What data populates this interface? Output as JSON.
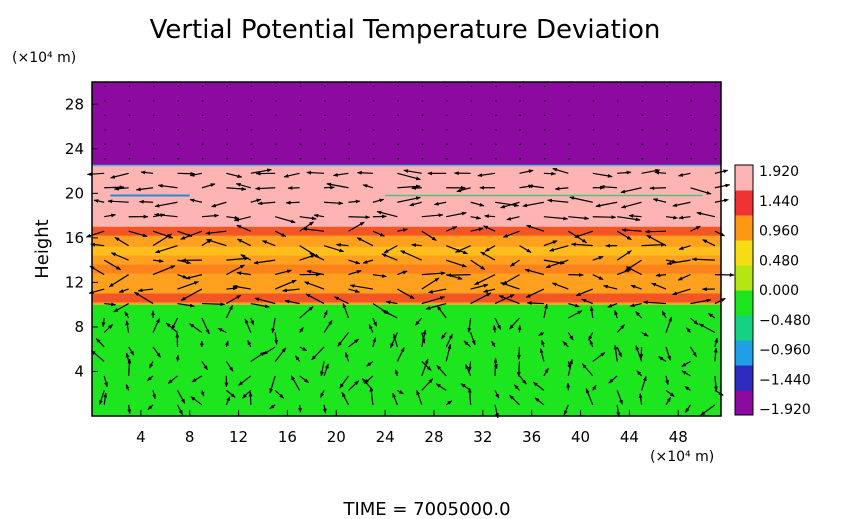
{
  "chart_data": {
    "type": "heatmap",
    "title": "Vertial Potential Temperature Deviation",
    "ylabel": "Height",
    "y_unit_label": "(×10⁴ m)",
    "x_unit_label": "(×10⁴ m)",
    "footer": "TIME  =  7005000.0",
    "xlim": [
      0,
      51.5
    ],
    "ylim": [
      0,
      30
    ],
    "xticks": [
      4,
      8,
      12,
      16,
      20,
      24,
      28,
      32,
      36,
      40,
      44,
      48
    ],
    "yticks": [
      4,
      8,
      12,
      16,
      20,
      24,
      28
    ],
    "colorbar": {
      "ticks": [
        "1.920",
        "1.440",
        "0.960",
        "0.480",
        "0.000",
        "−0.480",
        "−0.960",
        "−1.440",
        "−1.920"
      ],
      "range": [
        -1.92,
        1.92
      ],
      "colors": [
        "#8c0aa0",
        "#2b2bbf",
        "#1ea0e6",
        "#14d282",
        "#1ee61e",
        "#b4e614",
        "#f5dc14",
        "#ff9614",
        "#f03232",
        "#ffb4b4"
      ]
    },
    "layers": [
      {
        "name": "lower",
        "y_range": [
          0,
          10
        ],
        "value": 0.0,
        "color": "#1ee61e"
      },
      {
        "name": "middle",
        "y_range": [
          10,
          17
        ],
        "value": 1.2,
        "color": "#ffa01e"
      },
      {
        "name": "upper",
        "y_range": [
          17,
          22.5
        ],
        "value": 1.92,
        "color": "#ffb4b4"
      },
      {
        "name": "top",
        "y_range": [
          22.5,
          30
        ],
        "value": -1.92,
        "color": "#8c0aa0"
      }
    ]
  }
}
